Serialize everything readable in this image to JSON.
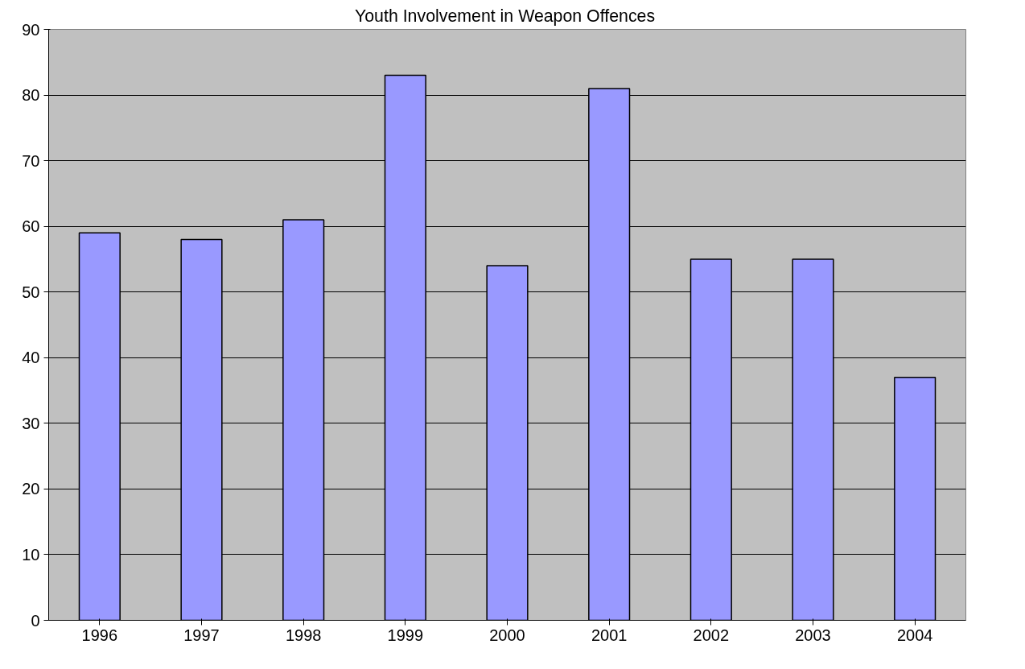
{
  "chart_data": {
    "type": "bar",
    "title": "Youth Involvement  in Weapon Offences",
    "categories": [
      "1996",
      "1997",
      "1998",
      "1999",
      "2000",
      "2001",
      "2002",
      "2003",
      "2004"
    ],
    "values": [
      59,
      58,
      61,
      83,
      54,
      81,
      55,
      55,
      37
    ],
    "color": "#9999ff",
    "ylim": [
      0,
      90
    ],
    "yticks": [
      0,
      10,
      20,
      30,
      40,
      50,
      60,
      70,
      80,
      90
    ],
    "grid": "y"
  }
}
